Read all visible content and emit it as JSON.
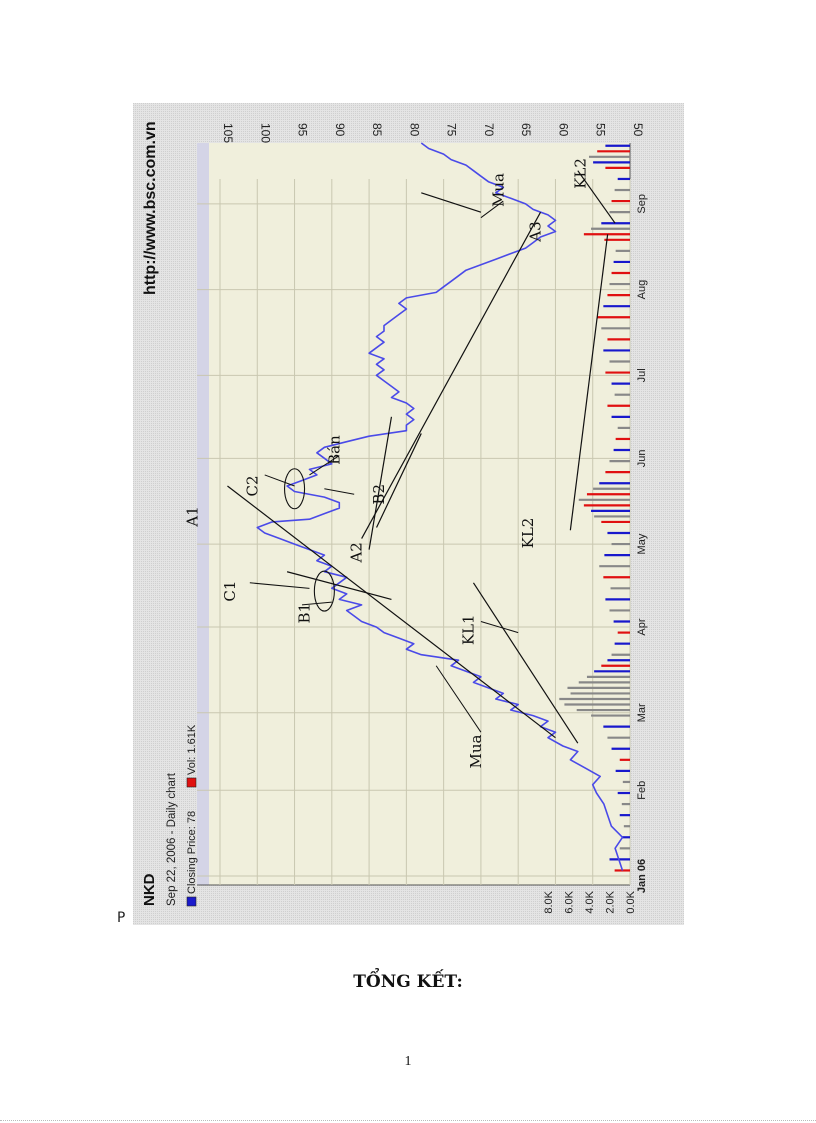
{
  "page": {
    "stray_letter": "P",
    "summary_heading": "TỔNG KẾT:",
    "page_number": "1"
  },
  "chart_data": {
    "type": "line",
    "orientation": "rotated 90 degrees clockwise",
    "ticker": "NKD",
    "date_line": "Sep 22, 2006 - Daily chart",
    "legend": [
      {
        "label": "Closing Price: 78",
        "color": "#1a1acc"
      },
      {
        "label": "Vol: 1.61K",
        "color": "#e01010"
      }
    ],
    "source": "http://www.bsc.com.vn",
    "price_axis": {
      "ticks": [
        "105",
        "100",
        "95",
        "90",
        "85",
        "80",
        "75",
        "70",
        "65",
        "60",
        "55",
        "50"
      ],
      "range": [
        50,
        105
      ]
    },
    "volume_axis": {
      "ticks": [
        "8.0K",
        "6.0K",
        "4.0K",
        "2.0K",
        "0.0K"
      ],
      "range": [
        0,
        8000
      ]
    },
    "time_axis": {
      "ticks": [
        "Jan 06",
        "Feb",
        "Mar",
        "Apr",
        "May",
        "Jun",
        "Jul",
        "Aug",
        "Sep"
      ],
      "range_days": [
        0,
        265
      ]
    },
    "price_series": {
      "name": "Closing Price",
      "color": "#4a4ae8",
      "points": [
        [
          2,
          51
        ],
        [
          6,
          51.5
        ],
        [
          10,
          52
        ],
        [
          14,
          51
        ],
        [
          18,
          52.5
        ],
        [
          22,
          53
        ],
        [
          26,
          53.5
        ],
        [
          30,
          54.5
        ],
        [
          33,
          55
        ],
        [
          36,
          54
        ],
        [
          39,
          56
        ],
        [
          42,
          58
        ],
        [
          45,
          57
        ],
        [
          47,
          59
        ],
        [
          50,
          61
        ],
        [
          52,
          60
        ],
        [
          54,
          62
        ],
        [
          56,
          61
        ],
        [
          58,
          63
        ],
        [
          60,
          66
        ],
        [
          62,
          65
        ],
        [
          64,
          68
        ],
        [
          66,
          67
        ],
        [
          68,
          69
        ],
        [
          70,
          71
        ],
        [
          72,
          70
        ],
        [
          74,
          72
        ],
        [
          76,
          74
        ],
        [
          78,
          73
        ],
        [
          80,
          78
        ],
        [
          82,
          80
        ],
        [
          84,
          79
        ],
        [
          86,
          81
        ],
        [
          88,
          83
        ],
        [
          90,
          84
        ],
        [
          92,
          86
        ],
        [
          94,
          87
        ],
        [
          96,
          88
        ],
        [
          98,
          86
        ],
        [
          100,
          89
        ],
        [
          102,
          88
        ],
        [
          104,
          90
        ],
        [
          106,
          89
        ],
        [
          108,
          88
        ],
        [
          110,
          91
        ],
        [
          112,
          90
        ],
        [
          114,
          92
        ],
        [
          116,
          91
        ],
        [
          118,
          93
        ],
        [
          120,
          95
        ],
        [
          122,
          97
        ],
        [
          124,
          99
        ],
        [
          126,
          100
        ],
        [
          128,
          98
        ],
        [
          129,
          93
        ],
        [
          131,
          91
        ],
        [
          133,
          89
        ],
        [
          135,
          89
        ],
        [
          137,
          91
        ],
        [
          139,
          95
        ],
        [
          141,
          96
        ],
        [
          143,
          94
        ],
        [
          145,
          92
        ],
        [
          147,
          93
        ],
        [
          149,
          90
        ],
        [
          151,
          91
        ],
        [
          153,
          92
        ],
        [
          155,
          91
        ],
        [
          157,
          88
        ],
        [
          159,
          85
        ],
        [
          161,
          80
        ],
        [
          163,
          80
        ],
        [
          165,
          79
        ],
        [
          167,
          80
        ],
        [
          169,
          79
        ],
        [
          171,
          80
        ],
        [
          173,
          82
        ],
        [
          175,
          81
        ],
        [
          177,
          82
        ],
        [
          179,
          83
        ],
        [
          181,
          84
        ],
        [
          183,
          83
        ],
        [
          185,
          84
        ],
        [
          187,
          83
        ],
        [
          189,
          85
        ],
        [
          191,
          84
        ],
        [
          193,
          83
        ],
        [
          195,
          84
        ],
        [
          197,
          83
        ],
        [
          199,
          83
        ],
        [
          201,
          82
        ],
        [
          203,
          81
        ],
        [
          205,
          80
        ],
        [
          207,
          81
        ],
        [
          209,
          80
        ],
        [
          211,
          76
        ],
        [
          213,
          75
        ],
        [
          215,
          74
        ],
        [
          217,
          73
        ],
        [
          219,
          72
        ],
        [
          221,
          70
        ],
        [
          223,
          68
        ],
        [
          225,
          66
        ],
        [
          227,
          64
        ],
        [
          229,
          63
        ],
        [
          231,
          62
        ],
        [
          233,
          60
        ],
        [
          235,
          61
        ],
        [
          237,
          60
        ],
        [
          239,
          61
        ],
        [
          241,
          63
        ],
        [
          243,
          64
        ],
        [
          245,
          66
        ],
        [
          247,
          68
        ],
        [
          249,
          67
        ],
        [
          251,
          69
        ],
        [
          253,
          70
        ],
        [
          255,
          71
        ],
        [
          257,
          72
        ],
        [
          259,
          74
        ],
        [
          261,
          75
        ],
        [
          263,
          77
        ],
        [
          265,
          78
        ]
      ]
    },
    "volume_series": {
      "name": "Vol",
      "colors": {
        "up": "#1818cc",
        "down": "#e01010",
        "flat": "#888888"
      },
      "bars": [
        [
          2,
          1.5,
          "down"
        ],
        [
          6,
          2.0,
          "up"
        ],
        [
          10,
          1.0,
          "flat"
        ],
        [
          14,
          0.8,
          "up"
        ],
        [
          18,
          0.6,
          "flat"
        ],
        [
          22,
          1.0,
          "up"
        ],
        [
          26,
          0.8,
          "flat"
        ],
        [
          30,
          1.2,
          "up"
        ],
        [
          34,
          0.7,
          "flat"
        ],
        [
          38,
          1.4,
          "up"
        ],
        [
          42,
          1.0,
          "down"
        ],
        [
          46,
          1.8,
          "up"
        ],
        [
          50,
          2.2,
          "flat"
        ],
        [
          54,
          2.6,
          "up"
        ],
        [
          58,
          3.8,
          "flat"
        ],
        [
          60,
          5.2,
          "flat"
        ],
        [
          62,
          6.4,
          "flat"
        ],
        [
          64,
          6.9,
          "flat"
        ],
        [
          66,
          5.8,
          "flat"
        ],
        [
          68,
          6.1,
          "flat"
        ],
        [
          70,
          5.0,
          "flat"
        ],
        [
          72,
          4.2,
          "flat"
        ],
        [
          74,
          3.5,
          "up"
        ],
        [
          76,
          2.8,
          "down"
        ],
        [
          78,
          2.2,
          "up"
        ],
        [
          80,
          1.8,
          "flat"
        ],
        [
          84,
          1.5,
          "up"
        ],
        [
          88,
          1.2,
          "down"
        ],
        [
          92,
          1.6,
          "up"
        ],
        [
          96,
          2.0,
          "flat"
        ],
        [
          100,
          2.4,
          "up"
        ],
        [
          104,
          1.9,
          "flat"
        ],
        [
          108,
          2.6,
          "down"
        ],
        [
          112,
          3.0,
          "flat"
        ],
        [
          116,
          2.5,
          "up"
        ],
        [
          120,
          1.8,
          "flat"
        ],
        [
          124,
          2.2,
          "up"
        ],
        [
          128,
          2.8,
          "down"
        ],
        [
          130,
          3.5,
          "flat"
        ],
        [
          132,
          3.8,
          "up"
        ],
        [
          134,
          4.5,
          "down"
        ],
        [
          136,
          5.0,
          "flat"
        ],
        [
          138,
          4.2,
          "down"
        ],
        [
          140,
          3.6,
          "flat"
        ],
        [
          142,
          3.0,
          "up"
        ],
        [
          146,
          2.4,
          "down"
        ],
        [
          150,
          2.0,
          "flat"
        ],
        [
          154,
          1.6,
          "up"
        ],
        [
          158,
          1.4,
          "down"
        ],
        [
          162,
          1.2,
          "flat"
        ],
        [
          166,
          1.8,
          "up"
        ],
        [
          170,
          2.2,
          "down"
        ],
        [
          174,
          1.5,
          "flat"
        ],
        [
          178,
          1.8,
          "up"
        ],
        [
          182,
          2.4,
          "down"
        ],
        [
          186,
          2.0,
          "flat"
        ],
        [
          190,
          2.6,
          "up"
        ],
        [
          194,
          2.2,
          "down"
        ],
        [
          198,
          2.8,
          "flat"
        ],
        [
          202,
          3.2,
          "down"
        ],
        [
          206,
          2.6,
          "up"
        ],
        [
          210,
          2.2,
          "down"
        ],
        [
          214,
          2.0,
          "flat"
        ],
        [
          218,
          1.8,
          "down"
        ],
        [
          222,
          1.6,
          "up"
        ],
        [
          226,
          1.4,
          "flat"
        ],
        [
          230,
          2.5,
          "down"
        ],
        [
          232,
          4.5,
          "down"
        ],
        [
          234,
          3.8,
          "flat"
        ],
        [
          236,
          2.8,
          "up"
        ],
        [
          240,
          2.0,
          "flat"
        ],
        [
          244,
          1.8,
          "down"
        ],
        [
          248,
          1.5,
          "flat"
        ],
        [
          252,
          1.2,
          "up"
        ],
        [
          256,
          2.4,
          "down"
        ],
        [
          258,
          3.6,
          "up"
        ],
        [
          260,
          4.0,
          "flat"
        ],
        [
          262,
          3.2,
          "down"
        ],
        [
          264,
          2.4,
          "up"
        ]
      ]
    },
    "annotations": [
      {
        "text": "A1",
        "day": 130,
        "price": 108
      },
      {
        "text": "A2",
        "day": 117,
        "price": 86
      },
      {
        "text": "A3",
        "day": 233,
        "price": 62
      },
      {
        "text": "B1",
        "day": 95,
        "price": 93
      },
      {
        "text": "B2",
        "day": 138,
        "price": 83
      },
      {
        "text": "C1",
        "day": 103,
        "price": 103
      },
      {
        "text": "C2",
        "day": 141,
        "price": 100
      },
      {
        "text": "Bán",
        "day": 154,
        "price": 89
      },
      {
        "text": "Mua",
        "day": 45,
        "price": 70
      },
      {
        "text": "Mua",
        "day": 248,
        "price": 67
      },
      {
        "text": "KL1",
        "day": 89,
        "price": 71
      },
      {
        "text": "KL2",
        "day": 124,
        "price": 63
      },
      {
        "text": "KL2",
        "day": 254,
        "price": 56
      }
    ],
    "trend_lines": [
      {
        "from": [
          50,
          60
        ],
        "to": [
          141,
          104
        ]
      },
      {
        "from": [
          100,
          82
        ],
        "to": [
          110,
          96
        ]
      },
      {
        "from": [
          118,
          85
        ],
        "to": [
          166,
          82
        ]
      },
      {
        "from": [
          126,
          84
        ],
        "to": [
          160,
          78
        ]
      },
      {
        "from": [
          240,
          70
        ],
        "to": [
          247,
          78
        ]
      },
      {
        "from": [
          122,
          86
        ],
        "to": [
          240,
          62
        ]
      },
      {
        "from": [
          48,
          57
        ],
        "to": [
          106,
          71
        ]
      },
      {
        "from": [
          125,
          58
        ],
        "to": [
          232,
          53
        ]
      },
      {
        "from": [
          236,
          52
        ],
        "to": [
          255,
          57
        ]
      }
    ],
    "leader_lines": [
      {
        "from": [
          106,
          101
        ],
        "to": [
          104,
          93
        ]
      },
      {
        "from": [
          145,
          99
        ],
        "to": [
          141,
          95
        ]
      },
      {
        "from": [
          98,
          94
        ],
        "to": [
          99,
          90
        ]
      },
      {
        "from": [
          138,
          87
        ],
        "to": [
          140,
          91
        ]
      },
      {
        "from": [
          152,
          89
        ],
        "to": [
          145,
          93
        ]
      },
      {
        "from": [
          52,
          70
        ],
        "to": [
          76,
          76
        ]
      },
      {
        "from": [
          244,
          67
        ],
        "to": [
          238,
          70
        ]
      },
      {
        "from": [
          92,
          70
        ],
        "to": [
          88,
          65
        ]
      }
    ],
    "highlight_ellipses": [
      {
        "day": 103,
        "price": 91
      },
      {
        "day": 140,
        "price": 95
      }
    ]
  }
}
